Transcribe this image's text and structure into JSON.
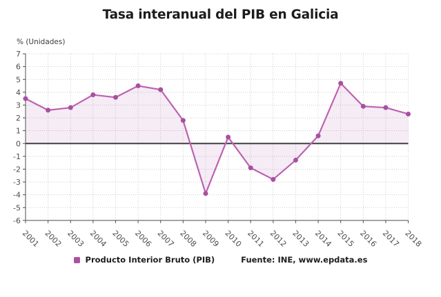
{
  "title": "Tasa interanual del PIB en Galicia",
  "y_axis_label": "% (Unidades)",
  "legend": {
    "series_label": "Producto Interior Bruto (PIB)",
    "source_label": "Fuente: INE, www.epdata.es",
    "marker_color": "#ae4fa0"
  },
  "colors": {
    "line": "#bd62b0",
    "marker": "#a850a0",
    "area_fill": "rgba(168,80,160,0.11)",
    "zero_line": "#3f3f3f",
    "grid": "#cdcdcd",
    "axis": "#4d4d4d",
    "tick_text": "#4d4d4d",
    "title_text": "#1c1c1c"
  },
  "chart_data": {
    "type": "line",
    "title": "Tasa interanual del PIB en Galicia",
    "xlabel": "",
    "ylabel": "% (Unidades)",
    "categories": [
      "2001",
      "2002",
      "2003",
      "2004",
      "2005",
      "2006",
      "2007",
      "2008",
      "2009",
      "2010",
      "2011",
      "2012",
      "2013",
      "2014",
      "2015",
      "2016",
      "2017",
      "2018"
    ],
    "series": [
      {
        "name": "Producto Interior Bruto (PIB)",
        "values": [
          3.5,
          2.6,
          2.8,
          3.8,
          3.6,
          4.5,
          4.2,
          1.8,
          -3.9,
          0.5,
          -1.9,
          -2.8,
          -1.3,
          0.6,
          4.7,
          2.9,
          2.8,
          2.3
        ]
      }
    ],
    "ylim": [
      -6,
      7
    ],
    "y_ticks": [
      7,
      6,
      5,
      4,
      3,
      2,
      1,
      0,
      -1,
      -2,
      -3,
      -4,
      -5,
      -6
    ],
    "grid": true,
    "grid_style": "dotted",
    "marker": "circle",
    "area_fill_to_zero": true,
    "zero_baseline": true,
    "legend_position": "bottom",
    "source": "Fuente: INE, www.epdata.es"
  }
}
